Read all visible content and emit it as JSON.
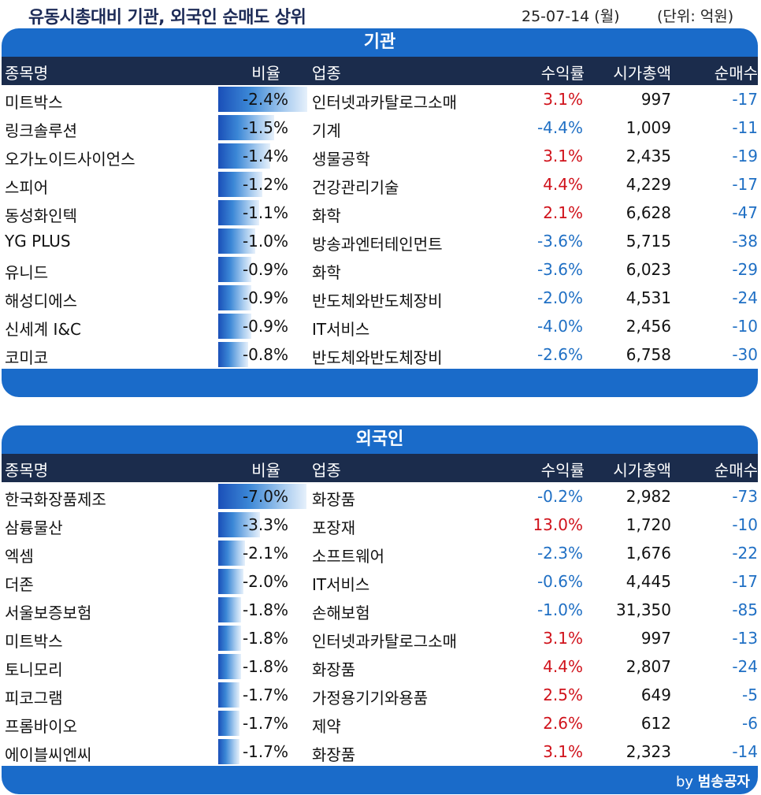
{
  "header": {
    "title": "유동시총대비 기관, 외국인 순매도 상위",
    "date": "25-07-14 (월)",
    "unit": "(단위: 억원)"
  },
  "columns": {
    "name": "종목명",
    "ratio": "비율",
    "industry": "업종",
    "return": "수익률",
    "market_cap": "시가총액",
    "net_sell": "순매수"
  },
  "institution": {
    "title": "기관",
    "rows": [
      {
        "name": "미트박스",
        "ratio": "-2.4%",
        "ratio_value": 2.4,
        "industry": "인터넷과카탈로그소매",
        "return": "3.1%",
        "market_cap": "997",
        "net": "-17"
      },
      {
        "name": "링크솔루션",
        "ratio": "-1.5%",
        "ratio_value": 1.5,
        "industry": "기계",
        "return": "-4.4%",
        "market_cap": "1,009",
        "net": "-11"
      },
      {
        "name": "오가노이드사이언스",
        "ratio": "-1.4%",
        "ratio_value": 1.4,
        "industry": "생물공학",
        "return": "3.1%",
        "market_cap": "2,435",
        "net": "-19"
      },
      {
        "name": "스피어",
        "ratio": "-1.2%",
        "ratio_value": 1.2,
        "industry": "건강관리기술",
        "return": "4.4%",
        "market_cap": "4,229",
        "net": "-17"
      },
      {
        "name": "동성화인텍",
        "ratio": "-1.1%",
        "ratio_value": 1.1,
        "industry": "화학",
        "return": "2.1%",
        "market_cap": "6,628",
        "net": "-47"
      },
      {
        "name": "YG PLUS",
        "ratio": "-1.0%",
        "ratio_value": 1.0,
        "industry": "방송과엔터테인먼트",
        "return": "-3.6%",
        "market_cap": "5,715",
        "net": "-38"
      },
      {
        "name": "유니드",
        "ratio": "-0.9%",
        "ratio_value": 0.9,
        "industry": "화학",
        "return": "-3.6%",
        "market_cap": "6,023",
        "net": "-29"
      },
      {
        "name": "해성디에스",
        "ratio": "-0.9%",
        "ratio_value": 0.9,
        "industry": "반도체와반도체장비",
        "return": "-2.0%",
        "market_cap": "4,531",
        "net": "-24"
      },
      {
        "name": "신세계 I&C",
        "ratio": "-0.9%",
        "ratio_value": 0.9,
        "industry": "IT서비스",
        "return": "-4.0%",
        "market_cap": "2,456",
        "net": "-10"
      },
      {
        "name": "코미코",
        "ratio": "-0.8%",
        "ratio_value": 0.8,
        "industry": "반도체와반도체장비",
        "return": "-2.6%",
        "market_cap": "6,758",
        "net": "-30"
      }
    ]
  },
  "foreign": {
    "title": "외국인",
    "rows": [
      {
        "name": "한국화장품제조",
        "ratio": "-7.0%",
        "ratio_value": 7.0,
        "industry": "화장품",
        "return": "-0.2%",
        "market_cap": "2,982",
        "net": "-73"
      },
      {
        "name": "삼륭물산",
        "ratio": "-3.3%",
        "ratio_value": 3.3,
        "industry": "포장재",
        "return": "13.0%",
        "market_cap": "1,720",
        "net": "-10"
      },
      {
        "name": "엑셈",
        "ratio": "-2.1%",
        "ratio_value": 2.1,
        "industry": "소프트웨어",
        "return": "-2.3%",
        "market_cap": "1,676",
        "net": "-22"
      },
      {
        "name": "더존",
        "ratio": "-2.0%",
        "ratio_value": 2.0,
        "industry": "IT서비스",
        "return": "-0.6%",
        "market_cap": "4,445",
        "net": "-17"
      },
      {
        "name": "서울보증보험",
        "ratio": "-1.8%",
        "ratio_value": 1.8,
        "industry": "손해보험",
        "return": "-1.0%",
        "market_cap": "31,350",
        "net": "-85"
      },
      {
        "name": "미트박스",
        "ratio": "-1.8%",
        "ratio_value": 1.8,
        "industry": "인터넷과카탈로그소매",
        "return": "3.1%",
        "market_cap": "997",
        "net": "-13"
      },
      {
        "name": "토니모리",
        "ratio": "-1.8%",
        "ratio_value": 1.8,
        "industry": "화장품",
        "return": "4.4%",
        "market_cap": "2,807",
        "net": "-24"
      },
      {
        "name": "피코그램",
        "ratio": "-1.7%",
        "ratio_value": 1.7,
        "industry": "가정용기기와용품",
        "return": "2.5%",
        "market_cap": "649",
        "net": "-5"
      },
      {
        "name": "프롬바이오",
        "ratio": "-1.7%",
        "ratio_value": 1.7,
        "industry": "제약",
        "return": "2.6%",
        "market_cap": "612",
        "net": "-6"
      },
      {
        "name": "에이블씨엔씨",
        "ratio": "-1.7%",
        "ratio_value": 1.7,
        "industry": "화장품",
        "return": "3.1%",
        "market_cap": "2,323",
        "net": "-14"
      }
    ]
  },
  "footer": {
    "credit_prefix": "by",
    "credit_name": "범송공자"
  },
  "colors": {
    "panel_blue": "#1a6bc9",
    "column_header": "#1b2c4c",
    "positive": "#d0121b",
    "negative": "#1f6fc4"
  }
}
